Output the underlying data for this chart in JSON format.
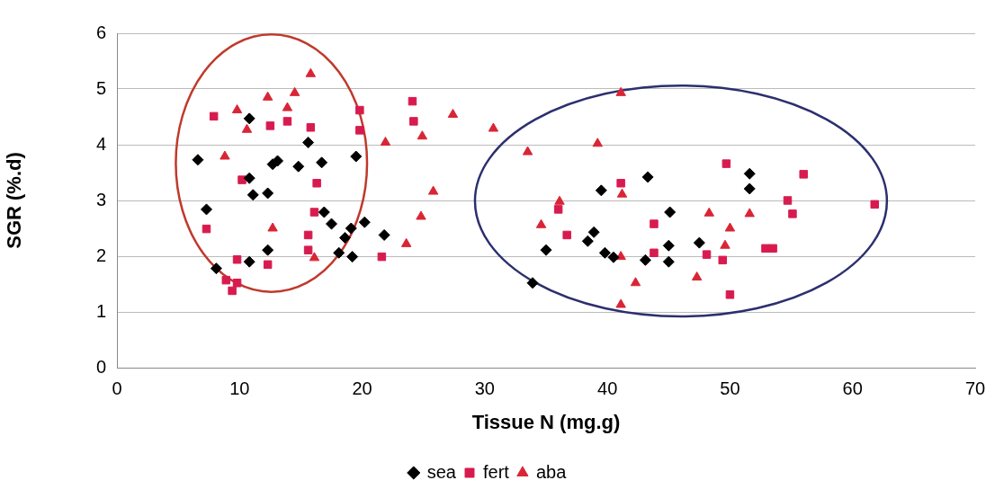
{
  "chart_data": {
    "type": "scatter",
    "xlabel": "Tissue N (mg.g)",
    "ylabel": "SGR (%.d)",
    "xlim": [
      0,
      70
    ],
    "xticks": [
      0,
      10,
      20,
      30,
      40,
      50,
      60,
      70
    ],
    "ylim": [
      0,
      6
    ],
    "yticks": [
      0,
      1,
      2,
      3,
      4,
      5,
      6
    ],
    "grid": "y",
    "legend": "bottom",
    "series": [
      {
        "name": "sea",
        "color": "#000000",
        "marker": "diamond",
        "x": [
          6.6,
          7.3,
          8.1,
          10.8,
          10.8,
          11.1,
          12.3,
          12.3,
          10.8,
          12.7,
          13.1,
          14.8,
          15.6,
          16.7,
          16.9,
          17.5,
          18.1,
          19.5,
          19.1,
          18.6,
          20.2,
          21.8,
          19.2,
          33.9,
          35.0,
          39.5,
          38.9,
          38.4,
          39.8,
          40.5,
          43.3,
          45.1,
          45.0,
          43.1,
          45.0,
          47.5,
          51.6,
          51.6
        ],
        "values": [
          3.73,
          2.84,
          1.78,
          4.47,
          3.4,
          3.1,
          3.13,
          2.11,
          1.9,
          3.65,
          3.71,
          3.61,
          4.04,
          3.68,
          2.79,
          2.58,
          2.06,
          3.79,
          2.5,
          2.33,
          2.61,
          2.38,
          1.99,
          1.52,
          2.11,
          3.18,
          2.43,
          2.27,
          2.06,
          1.98,
          3.42,
          2.79,
          2.19,
          1.93,
          1.9,
          2.24,
          3.48,
          3.21
        ]
      },
      {
        "name": "fert",
        "color": "#d81b4f",
        "marker": "square",
        "x": [
          7.9,
          7.3,
          12.5,
          13.9,
          15.8,
          16.3,
          10.2,
          16.1,
          15.6,
          15.6,
          9.8,
          12.3,
          8.9,
          9.8,
          9.4,
          19.8,
          19.8,
          24.1,
          24.2,
          21.6,
          41.1,
          36.7,
          36.0,
          43.8,
          43.8,
          48.1,
          49.7,
          56.0,
          54.7,
          55.1,
          61.8,
          52.9,
          53.5,
          49.4,
          50.0
        ],
        "values": [
          4.51,
          2.49,
          4.34,
          4.42,
          4.31,
          3.31,
          3.37,
          2.79,
          2.38,
          2.11,
          1.94,
          1.85,
          1.57,
          1.52,
          1.38,
          4.62,
          4.26,
          4.78,
          4.42,
          1.99,
          3.31,
          2.38,
          2.84,
          2.58,
          2.06,
          2.03,
          3.66,
          3.47,
          3.0,
          2.76,
          2.93,
          2.14,
          2.14,
          1.93,
          1.31
        ]
      },
      {
        "name": "aba",
        "color": "#d92535",
        "marker": "triangle",
        "x": [
          9.8,
          10.6,
          12.3,
          14.5,
          13.9,
          15.8,
          8.8,
          12.7,
          16.1,
          27.4,
          24.9,
          21.9,
          30.7,
          25.8,
          24.8,
          23.6,
          41.1,
          33.5,
          39.2,
          36.1,
          34.6,
          41.2,
          41.1,
          42.3,
          41.1,
          47.3,
          48.3,
          51.6,
          50.0,
          49.6
        ],
        "values": [
          4.62,
          4.27,
          4.85,
          4.93,
          4.66,
          5.27,
          3.79,
          2.5,
          1.97,
          4.54,
          4.15,
          4.04,
          4.29,
          3.16,
          2.71,
          2.22,
          4.93,
          3.87,
          4.02,
          2.98,
          2.56,
          3.11,
          1.99,
          1.52,
          1.13,
          1.62,
          2.77,
          2.76,
          2.5,
          2.19
        ]
      }
    ]
  }
}
